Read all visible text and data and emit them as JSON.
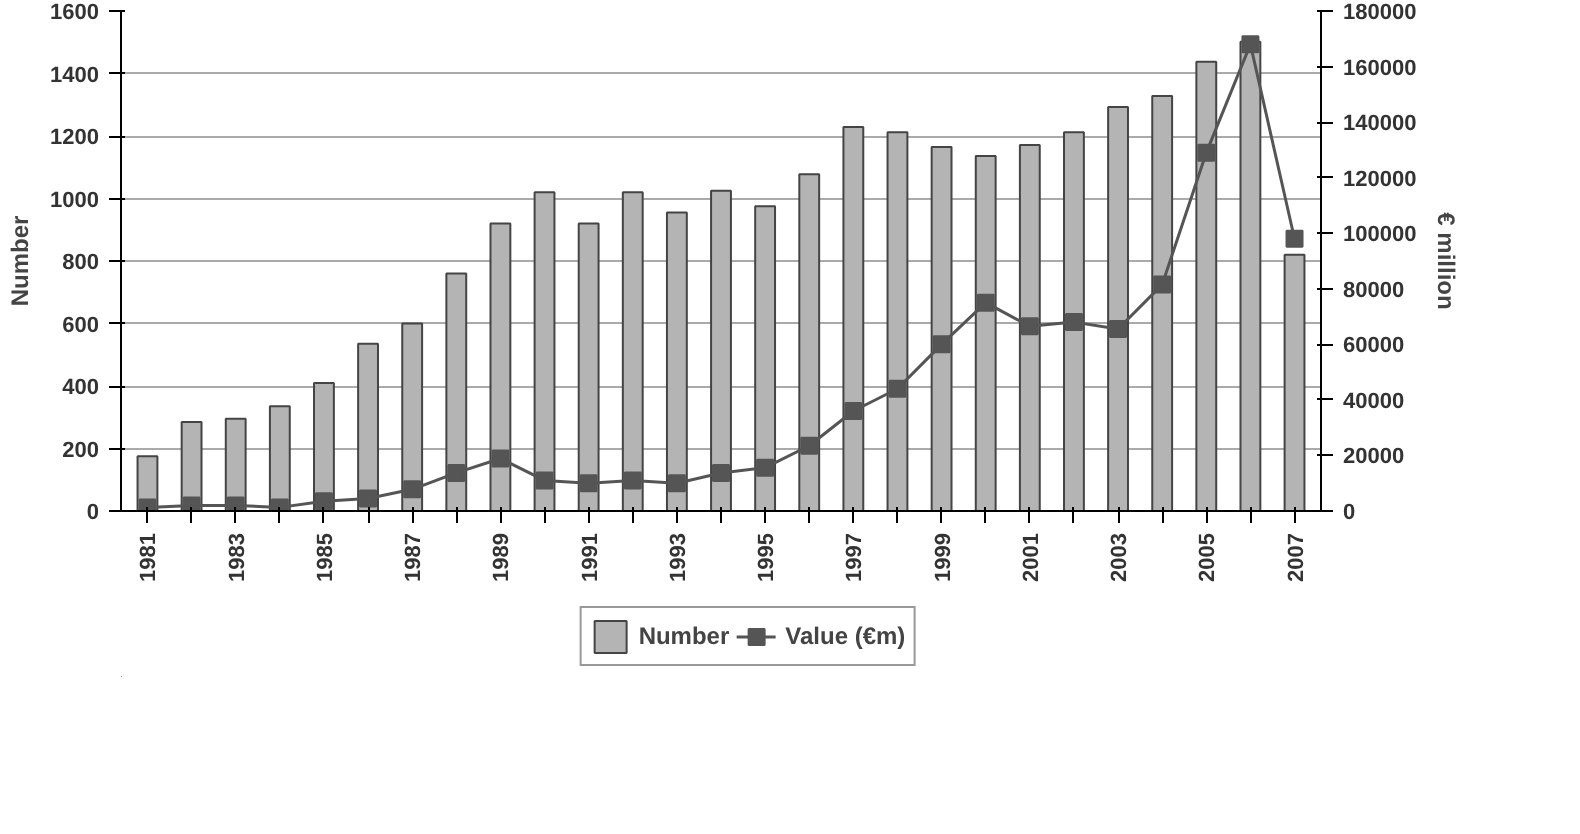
{
  "chart_data": {
    "type": "bar",
    "ylabel": "Number",
    "y2label": "€ million",
    "categories": [
      "1981",
      null,
      "1983",
      null,
      "1985",
      null,
      "1987",
      null,
      "1989",
      null,
      "1991",
      null,
      "1993",
      null,
      "1995",
      null,
      "1997",
      null,
      "1999",
      null,
      "2001",
      null,
      "2003",
      null,
      "2005",
      null,
      "2007"
    ],
    "series": [
      {
        "name": "Number",
        "color": "#b4b4b4",
        "values": [
          175,
          285,
          295,
          335,
          410,
          535,
          600,
          760,
          920,
          1020,
          920,
          1020,
          955,
          1025,
          975,
          1078,
          1229,
          1212,
          1165,
          1136,
          1171,
          1212,
          1293,
          1328,
          1438,
          1502,
          820
        ]
      },
      {
        "name": "Value (€m)",
        "type": "line",
        "axis": "y2",
        "color": "#555555",
        "marker": "square",
        "values": [
          1300,
          2000,
          2000,
          1300,
          3500,
          4500,
          7800,
          13700,
          18900,
          11000,
          10000,
          11000,
          10000,
          13700,
          15600,
          23500,
          36000,
          44000,
          60000,
          75000,
          66500,
          68000,
          65500,
          81500,
          129000,
          168000,
          98000
        ]
      }
    ],
    "ylim": [
      0,
      1600
    ],
    "yticks": [
      0,
      200,
      400,
      600,
      800,
      1000,
      1200,
      1400,
      1600
    ],
    "y2lim": [
      0,
      180000
    ],
    "y2ticks": [
      0,
      20000,
      40000,
      60000,
      80000,
      100000,
      120000,
      140000,
      160000,
      180000
    ],
    "grid": "y",
    "legend": "bottom"
  }
}
